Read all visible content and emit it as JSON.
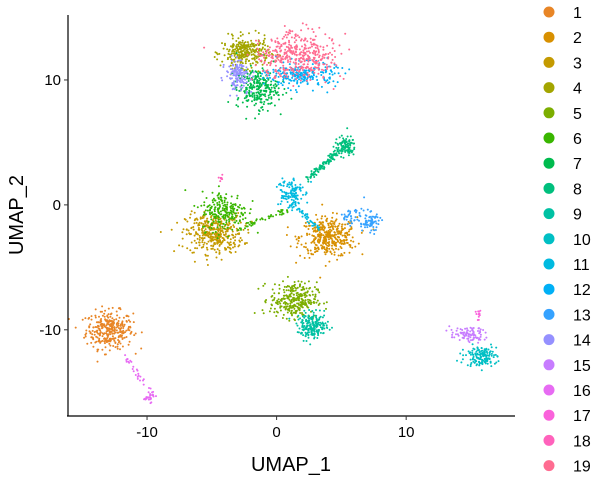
{
  "chart_data": {
    "type": "scatter",
    "title": "",
    "xlabel": "UMAP_1",
    "ylabel": "UMAP_2",
    "xlim": [
      -16.1,
      18.4
    ],
    "ylim": [
      -16.9,
      15.2
    ],
    "xticks": [
      -10,
      0,
      10
    ],
    "yticks": [
      -10,
      0,
      10
    ],
    "grid": false,
    "legend_position": "right",
    "clusters": [
      {
        "name": "1",
        "color": "#E88526",
        "blobs": [
          {
            "cx": -12.9,
            "cy": -10.0,
            "sx": 0.9,
            "sy": 0.75,
            "n": 320
          }
        ]
      },
      {
        "name": "2",
        "color": "#D89000",
        "blobs": [
          {
            "cx": 4.0,
            "cy": -2.6,
            "sx": 1.1,
            "sy": 0.8,
            "n": 380
          }
        ]
      },
      {
        "name": "3",
        "color": "#C49A00",
        "blobs": [
          {
            "cx": -4.8,
            "cy": -2.3,
            "sx": 1.1,
            "sy": 0.8,
            "n": 380
          }
        ]
      },
      {
        "name": "4",
        "color": "#A3A500",
        "blobs": [
          {
            "cx": -2.4,
            "cy": 12.2,
            "sx": 0.9,
            "sy": 0.6,
            "n": 300
          }
        ]
      },
      {
        "name": "5",
        "color": "#7CAE00",
        "blobs": [
          {
            "cx": 1.3,
            "cy": -7.6,
            "sx": 0.9,
            "sy": 0.7,
            "n": 300
          }
        ]
      },
      {
        "name": "6",
        "color": "#39B600",
        "blobs": [
          {
            "cx": -4.0,
            "cy": -0.5,
            "sx": 0.9,
            "sy": 0.8,
            "n": 220
          }
        ],
        "streaks": [
          {
            "x0": -3.0,
            "y0": -2.0,
            "x1": 0.8,
            "y1": -0.4,
            "n": 40
          }
        ]
      },
      {
        "name": "7",
        "color": "#00BB4E",
        "blobs": [
          {
            "cx": -1.5,
            "cy": 9.3,
            "sx": 0.8,
            "sy": 0.8,
            "n": 260
          }
        ]
      },
      {
        "name": "8",
        "color": "#00BF7D",
        "blobs": [
          {
            "cx": 5.3,
            "cy": 4.7,
            "sx": 0.4,
            "sy": 0.4,
            "n": 100
          }
        ],
        "streaks": [
          {
            "x0": 2.3,
            "y0": 2.0,
            "x1": 5.0,
            "y1": 4.5,
            "n": 110
          }
        ]
      },
      {
        "name": "9",
        "color": "#00C1A3",
        "blobs": [
          {
            "cx": 2.8,
            "cy": -9.7,
            "sx": 0.6,
            "sy": 0.5,
            "n": 200
          }
        ]
      },
      {
        "name": "10",
        "color": "#00BFC4",
        "blobs": [
          {
            "cx": 15.8,
            "cy": -12.1,
            "sx": 0.6,
            "sy": 0.4,
            "n": 150
          }
        ]
      },
      {
        "name": "11",
        "color": "#00BAE0",
        "blobs": [
          {
            "cx": 1.0,
            "cy": 1.0,
            "sx": 0.5,
            "sy": 0.7,
            "n": 120
          }
        ],
        "streaks": [
          {
            "x0": 1.3,
            "y0": 0.2,
            "x1": 3.3,
            "y1": -2.0,
            "n": 40
          }
        ]
      },
      {
        "name": "12",
        "color": "#00B0F6",
        "blobs": [
          {
            "cx": 2.0,
            "cy": 10.4,
            "sx": 1.3,
            "sy": 0.5,
            "n": 230
          }
        ]
      },
      {
        "name": "13",
        "color": "#35A2FF",
        "blobs": [
          {
            "cx": 7.2,
            "cy": -1.4,
            "sx": 0.4,
            "sy": 0.4,
            "n": 70
          },
          {
            "cx": 5.8,
            "cy": -0.9,
            "sx": 0.5,
            "sy": 0.35,
            "n": 40
          }
        ]
      },
      {
        "name": "14",
        "color": "#9590FF",
        "blobs": [
          {
            "cx": -3.0,
            "cy": 10.4,
            "sx": 0.45,
            "sy": 0.6,
            "n": 140
          }
        ]
      },
      {
        "name": "15",
        "color": "#C77CFF",
        "blobs": [
          {
            "cx": 14.8,
            "cy": -10.4,
            "sx": 0.7,
            "sy": 0.3,
            "n": 90
          }
        ]
      },
      {
        "name": "16",
        "color": "#E76BF3",
        "blobs": [
          {
            "cx": -9.8,
            "cy": -15.3,
            "sx": 0.2,
            "sy": 0.25,
            "n": 30
          }
        ],
        "streaks": [
          {
            "x0": -11.8,
            "y0": -12.0,
            "x1": -10.2,
            "y1": -14.5,
            "n": 25
          }
        ]
      },
      {
        "name": "17",
        "color": "#FA62DB",
        "blobs": [
          {
            "cx": 15.6,
            "cy": -8.7,
            "sx": 0.1,
            "sy": 0.3,
            "n": 12
          }
        ]
      },
      {
        "name": "18",
        "color": "#FF62BC",
        "blobs": [
          {
            "cx": -4.2,
            "cy": 2.2,
            "sx": 0.12,
            "sy": 0.12,
            "n": 8
          }
        ]
      },
      {
        "name": "19",
        "color": "#FF6C91",
        "blobs": [
          {
            "cx": 1.6,
            "cy": 11.9,
            "sx": 1.5,
            "sy": 0.9,
            "n": 420
          }
        ]
      }
    ]
  }
}
